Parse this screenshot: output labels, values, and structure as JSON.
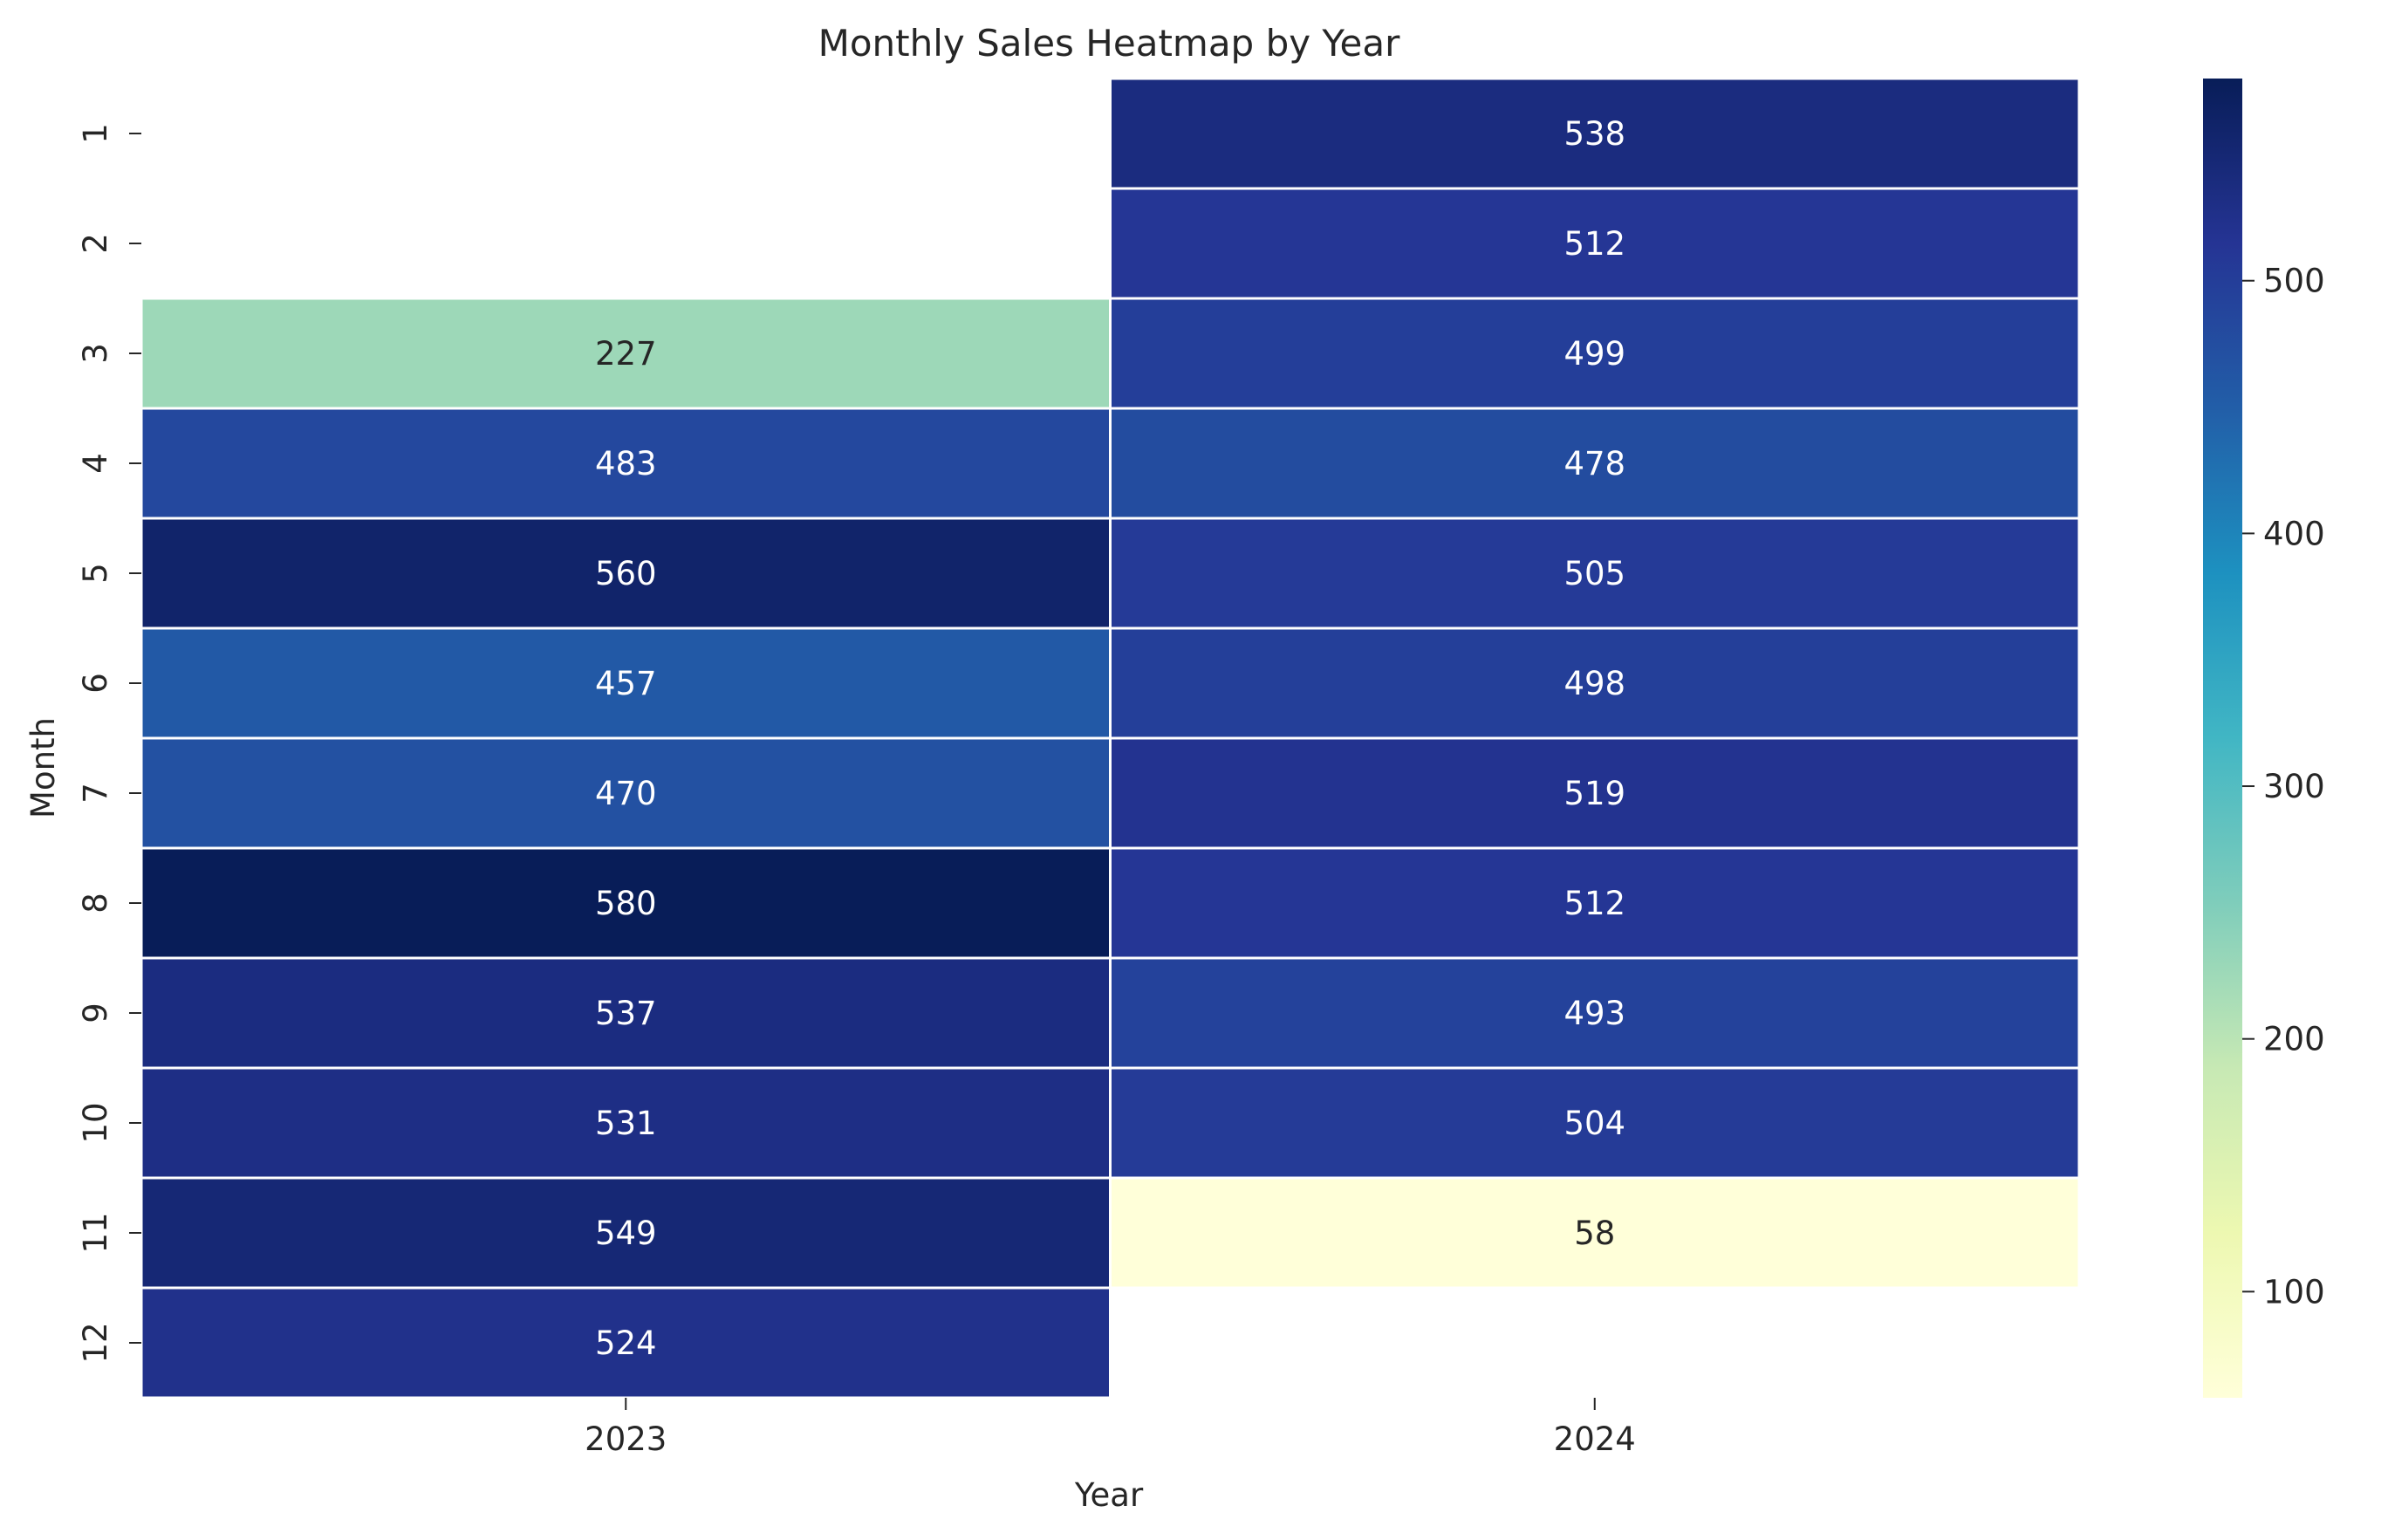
{
  "chart_data": {
    "type": "heatmap",
    "title": "Monthly Sales Heatmap by Year",
    "xlabel": "Year",
    "ylabel": "Month",
    "x_categories": [
      "2023",
      "2024"
    ],
    "y_categories": [
      "1",
      "2",
      "3",
      "4",
      "5",
      "6",
      "7",
      "8",
      "9",
      "10",
      "11",
      "12"
    ],
    "values": [
      [
        null,
        538
      ],
      [
        null,
        512
      ],
      [
        227,
        499
      ],
      [
        483,
        478
      ],
      [
        560,
        505
      ],
      [
        457,
        498
      ],
      [
        470,
        519
      ],
      [
        580,
        512
      ],
      [
        537,
        493
      ],
      [
        531,
        504
      ],
      [
        549,
        58
      ],
      [
        524,
        null
      ]
    ],
    "color_scale": {
      "name": "YlGnBu",
      "min": 58,
      "max": 580,
      "stops": [
        "#ffffd9",
        "#edf8b1",
        "#c7e9b4",
        "#7fcdbb",
        "#41b6c4",
        "#1d91c0",
        "#225ea8",
        "#253494",
        "#081d58"
      ]
    },
    "colorbar": {
      "ticks": [
        100,
        200,
        300,
        400,
        500
      ],
      "tick_labels": [
        "100",
        "200",
        "300",
        "400",
        "500"
      ]
    },
    "grid": false,
    "legend": "colorbar-right"
  }
}
